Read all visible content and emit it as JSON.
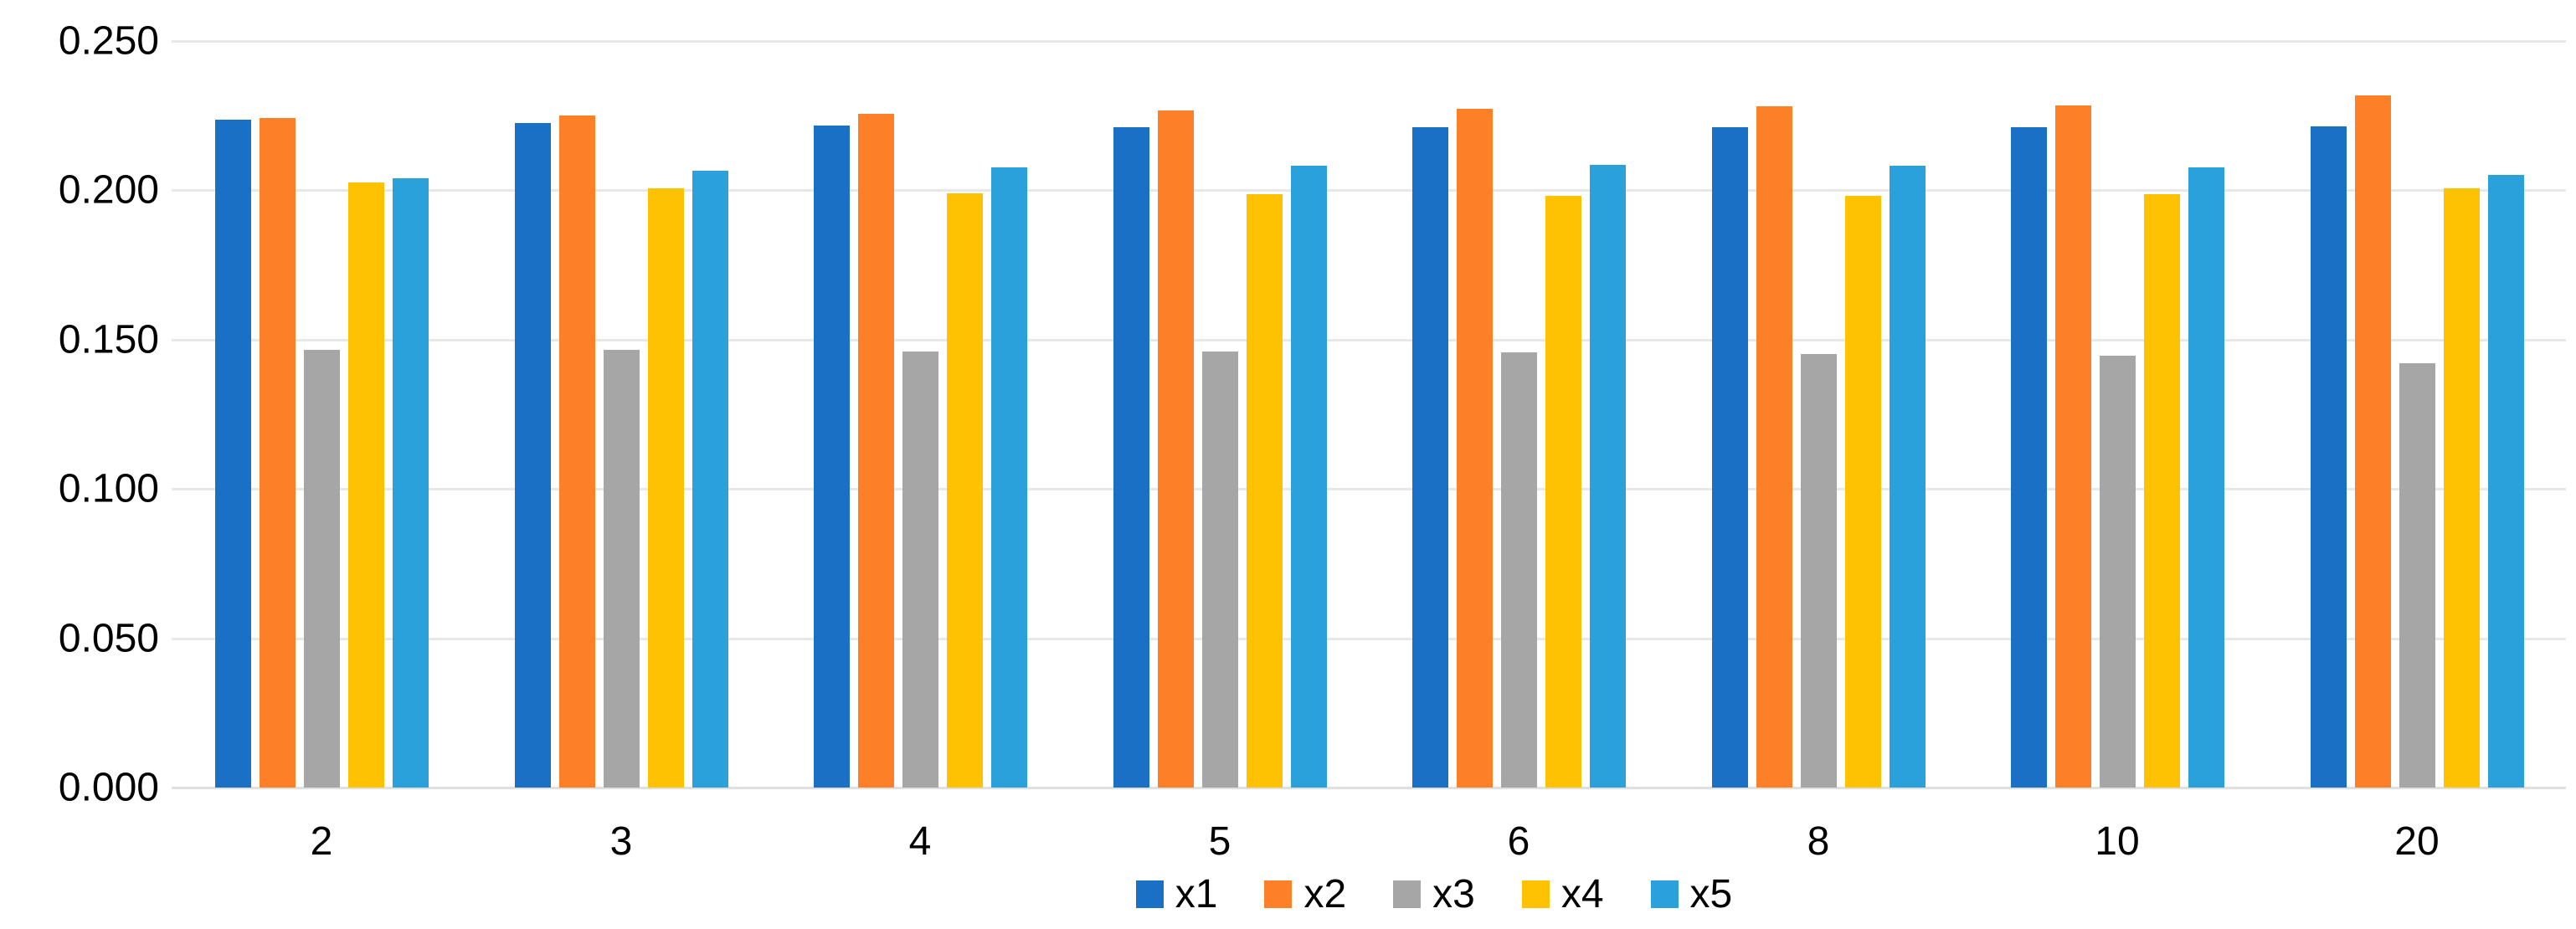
{
  "chart_data": {
    "type": "bar",
    "title": "",
    "xlabel": "",
    "ylabel": "",
    "categories": [
      "2",
      "3",
      "4",
      "5",
      "6",
      "8",
      "10",
      "20"
    ],
    "series": [
      {
        "name": "x1",
        "color": "#1a70c4",
        "values": [
          0.2237,
          0.2224,
          0.2218,
          0.2212,
          0.2212,
          0.2212,
          0.221,
          0.2213
        ]
      },
      {
        "name": "x2",
        "color": "#fd7f28",
        "values": [
          0.2243,
          0.2251,
          0.2257,
          0.2267,
          0.2272,
          0.228,
          0.2285,
          0.2317
        ]
      },
      {
        "name": "x3",
        "color": "#a6a6a6",
        "values": [
          0.1466,
          0.1465,
          0.146,
          0.146,
          0.1456,
          0.1452,
          0.1445,
          0.142
        ]
      },
      {
        "name": "x4",
        "color": "#fec203",
        "values": [
          0.2026,
          0.2008,
          0.1991,
          0.1986,
          0.1981,
          0.1982,
          0.1986,
          0.2006
        ]
      },
      {
        "name": "x5",
        "color": "#2aa1da",
        "values": [
          0.204,
          0.2065,
          0.2076,
          0.2083,
          0.2085,
          0.2083,
          0.2076,
          0.2051
        ]
      }
    ],
    "ylim": [
      0,
      0.25
    ],
    "y_ticks": [
      {
        "label": "0.250",
        "value": 0.25
      },
      {
        "label": "0.200",
        "value": 0.2
      },
      {
        "label": "0.150",
        "value": 0.15
      },
      {
        "label": "0.100",
        "value": 0.1
      },
      {
        "label": "0.050",
        "value": 0.05
      },
      {
        "label": "0.000",
        "value": 0.0
      }
    ],
    "grid": true,
    "legend_position": "bottom-center"
  },
  "style": {
    "background": "#ffffff",
    "gridline_color": "#e8e8e8",
    "axis_line_color": "#e0e0e0",
    "text_color": "#000000"
  }
}
